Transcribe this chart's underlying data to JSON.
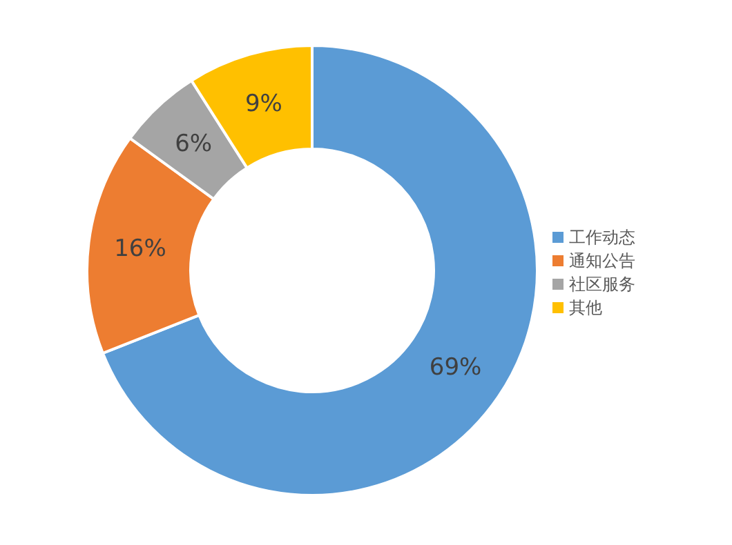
{
  "chart_data": {
    "type": "donut",
    "categories": [
      "工作动态",
      "通知公告",
      "社区服务",
      "其他"
    ],
    "values": [
      69,
      16,
      6,
      9
    ],
    "colors": [
      "#5b9bd5",
      "#ed7d31",
      "#a5a5a5",
      "#ffc000"
    ],
    "value_labels": [
      "69%",
      "16%",
      "6%",
      "9%"
    ],
    "legend": "right"
  }
}
